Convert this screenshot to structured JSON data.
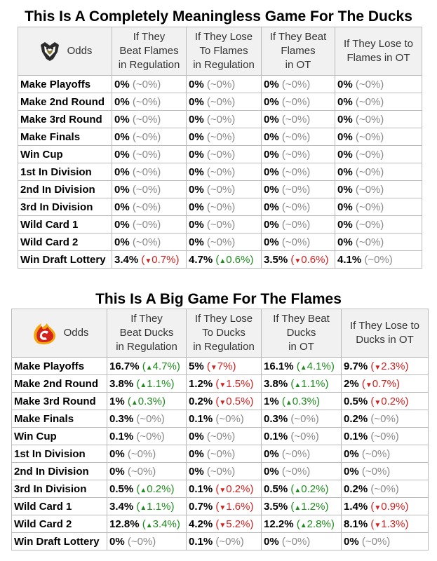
{
  "ducks": {
    "title": "This Is A Completely Meaningless Game For The Ducks",
    "logo_icon": "ducks-logo-icon",
    "odds_label": "Odds",
    "columns": [
      [
        "If They",
        "Beat Flames",
        "in Regulation"
      ],
      [
        "If They Lose",
        "To Flames",
        "in Regulation"
      ],
      [
        "If They Beat",
        "Flames",
        "in OT"
      ],
      [
        "If They Lose to",
        "Flames in OT"
      ]
    ],
    "rows": [
      {
        "label": "Make Playoffs",
        "cells": [
          [
            "0%",
            "(~0%)",
            "n"
          ],
          [
            "0%",
            "(~0%)",
            "n"
          ],
          [
            "0%",
            "(~0%)",
            "n"
          ],
          [
            "0%",
            "(~0%)",
            "n"
          ]
        ]
      },
      {
        "label": "Make 2nd Round",
        "cells": [
          [
            "0%",
            "(~0%)",
            "n"
          ],
          [
            "0%",
            "(~0%)",
            "n"
          ],
          [
            "0%",
            "(~0%)",
            "n"
          ],
          [
            "0%",
            "(~0%)",
            "n"
          ]
        ]
      },
      {
        "label": "Make 3rd Round",
        "cells": [
          [
            "0%",
            "(~0%)",
            "n"
          ],
          [
            "0%",
            "(~0%)",
            "n"
          ],
          [
            "0%",
            "(~0%)",
            "n"
          ],
          [
            "0%",
            "(~0%)",
            "n"
          ]
        ]
      },
      {
        "label": "Make Finals",
        "cells": [
          [
            "0%",
            "(~0%)",
            "n"
          ],
          [
            "0%",
            "(~0%)",
            "n"
          ],
          [
            "0%",
            "(~0%)",
            "n"
          ],
          [
            "0%",
            "(~0%)",
            "n"
          ]
        ]
      },
      {
        "label": "Win Cup",
        "cells": [
          [
            "0%",
            "(~0%)",
            "n"
          ],
          [
            "0%",
            "(~0%)",
            "n"
          ],
          [
            "0%",
            "(~0%)",
            "n"
          ],
          [
            "0%",
            "(~0%)",
            "n"
          ]
        ]
      },
      {
        "label": "1st In Division",
        "cells": [
          [
            "0%",
            "(~0%)",
            "n"
          ],
          [
            "0%",
            "(~0%)",
            "n"
          ],
          [
            "0%",
            "(~0%)",
            "n"
          ],
          [
            "0%",
            "(~0%)",
            "n"
          ]
        ]
      },
      {
        "label": "2nd In Division",
        "cells": [
          [
            "0%",
            "(~0%)",
            "n"
          ],
          [
            "0%",
            "(~0%)",
            "n"
          ],
          [
            "0%",
            "(~0%)",
            "n"
          ],
          [
            "0%",
            "(~0%)",
            "n"
          ]
        ]
      },
      {
        "label": "3rd In Division",
        "cells": [
          [
            "0%",
            "(~0%)",
            "n"
          ],
          [
            "0%",
            "(~0%)",
            "n"
          ],
          [
            "0%",
            "(~0%)",
            "n"
          ],
          [
            "0%",
            "(~0%)",
            "n"
          ]
        ]
      },
      {
        "label": "Wild Card 1",
        "cells": [
          [
            "0%",
            "(~0%)",
            "n"
          ],
          [
            "0%",
            "(~0%)",
            "n"
          ],
          [
            "0%",
            "(~0%)",
            "n"
          ],
          [
            "0%",
            "(~0%)",
            "n"
          ]
        ]
      },
      {
        "label": "Wild Card 2",
        "cells": [
          [
            "0%",
            "(~0%)",
            "n"
          ],
          [
            "0%",
            "(~0%)",
            "n"
          ],
          [
            "0%",
            "(~0%)",
            "n"
          ],
          [
            "0%",
            "(~0%)",
            "n"
          ]
        ]
      },
      {
        "label": "Win Draft Lottery",
        "cells": [
          [
            "3.4%",
            "0.7%",
            "d"
          ],
          [
            "4.7%",
            "0.6%",
            "u"
          ],
          [
            "3.5%",
            "0.6%",
            "d"
          ],
          [
            "4.1%",
            "(~0%)",
            "n"
          ]
        ]
      }
    ]
  },
  "flames": {
    "title": "This Is A Big Game For The Flames",
    "logo_icon": "flames-logo-icon",
    "odds_label": "Odds",
    "columns": [
      [
        "If They",
        "Beat Ducks",
        "in Regulation"
      ],
      [
        "If They Lose",
        "To Ducks",
        "in Regulation"
      ],
      [
        "If They Beat",
        "Ducks",
        "in OT"
      ],
      [
        "If They Lose to",
        "Ducks in OT"
      ]
    ],
    "rows": [
      {
        "label": "Make Playoffs",
        "cells": [
          [
            "16.7%",
            "4.7%",
            "u"
          ],
          [
            "5%",
            "7%",
            "d"
          ],
          [
            "16.1%",
            "4.1%",
            "u"
          ],
          [
            "9.7%",
            "2.3%",
            "d"
          ]
        ]
      },
      {
        "label": "Make 2nd Round",
        "cells": [
          [
            "3.8%",
            "1.1%",
            "u"
          ],
          [
            "1.2%",
            "1.5%",
            "d"
          ],
          [
            "3.8%",
            "1.1%",
            "u"
          ],
          [
            "2%",
            "0.7%",
            "d"
          ]
        ]
      },
      {
        "label": "Make 3rd Round",
        "cells": [
          [
            "1%",
            "0.3%",
            "u"
          ],
          [
            "0.2%",
            "0.5%",
            "d"
          ],
          [
            "1%",
            "0.3%",
            "u"
          ],
          [
            "0.5%",
            "0.2%",
            "d"
          ]
        ]
      },
      {
        "label": "Make Finals",
        "cells": [
          [
            "0.3%",
            "(~0%)",
            "n"
          ],
          [
            "0.1%",
            "(~0%)",
            "n"
          ],
          [
            "0.3%",
            "(~0%)",
            "n"
          ],
          [
            "0.2%",
            "(~0%)",
            "n"
          ]
        ]
      },
      {
        "label": "Win Cup",
        "cells": [
          [
            "0.1%",
            "(~0%)",
            "n"
          ],
          [
            "0%",
            "(~0%)",
            "n"
          ],
          [
            "0.1%",
            "(~0%)",
            "n"
          ],
          [
            "0.1%",
            "(~0%)",
            "n"
          ]
        ]
      },
      {
        "label": "1st In Division",
        "cells": [
          [
            "0%",
            "(~0%)",
            "n"
          ],
          [
            "0%",
            "(~0%)",
            "n"
          ],
          [
            "0%",
            "(~0%)",
            "n"
          ],
          [
            "0%",
            "(~0%)",
            "n"
          ]
        ]
      },
      {
        "label": "2nd In Division",
        "cells": [
          [
            "0%",
            "(~0%)",
            "n"
          ],
          [
            "0%",
            "(~0%)",
            "n"
          ],
          [
            "0%",
            "(~0%)",
            "n"
          ],
          [
            "0%",
            "(~0%)",
            "n"
          ]
        ]
      },
      {
        "label": "3rd In Division",
        "cells": [
          [
            "0.5%",
            "0.2%",
            "u"
          ],
          [
            "0.1%",
            "0.2%",
            "d"
          ],
          [
            "0.5%",
            "0.2%",
            "u"
          ],
          [
            "0.2%",
            "(~0%)",
            "n"
          ]
        ]
      },
      {
        "label": "Wild Card 1",
        "cells": [
          [
            "3.4%",
            "1.1%",
            "u"
          ],
          [
            "0.7%",
            "1.6%",
            "d"
          ],
          [
            "3.5%",
            "1.2%",
            "u"
          ],
          [
            "1.4%",
            "0.9%",
            "d"
          ]
        ]
      },
      {
        "label": "Wild Card 2",
        "cells": [
          [
            "12.8%",
            "3.4%",
            "u"
          ],
          [
            "4.2%",
            "5.2%",
            "d"
          ],
          [
            "12.2%",
            "2.8%",
            "u"
          ],
          [
            "8.1%",
            "1.3%",
            "d"
          ]
        ]
      },
      {
        "label": "Win Draft Lottery",
        "cells": [
          [
            "0%",
            "(~0%)",
            "n"
          ],
          [
            "0.1%",
            "(~0%)",
            "n"
          ],
          [
            "0%",
            "(~0%)",
            "n"
          ],
          [
            "0%",
            "(~0%)",
            "n"
          ]
        ]
      }
    ]
  },
  "colors": {
    "up": "#1e8a1e",
    "down": "#d02020",
    "neutral": "#888888",
    "header_bg": "#f1f1f1",
    "border": "#bbbbbb"
  }
}
